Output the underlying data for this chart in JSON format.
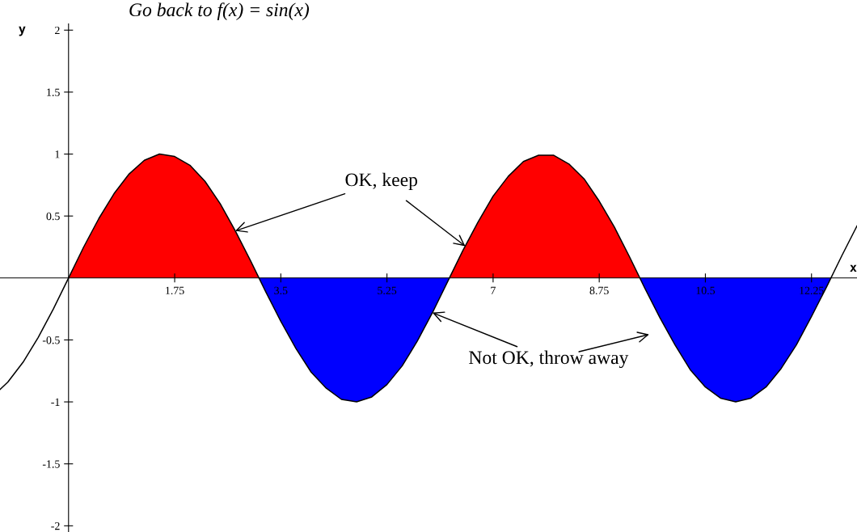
{
  "chart_data": {
    "type": "line",
    "title": "Go back to f(x) = sin(x)",
    "xlabel": "x",
    "ylabel": "y",
    "xlim": [
      -1.13,
      13.0
    ],
    "ylim": [
      -2.05,
      2.05
    ],
    "xticks": [
      1.75,
      3.5,
      5.25,
      7,
      8.75,
      10.5,
      12.25
    ],
    "yticks": [
      -2,
      -1.5,
      -1,
      -0.5,
      0.5,
      1,
      1.5,
      2
    ],
    "grid": false,
    "legend": false,
    "marker": "none",
    "line_style": "solid",
    "series": [
      {
        "type": "area",
        "color": "#ff0000",
        "x": [
          0,
          0.25,
          0.5,
          0.75,
          1.0,
          1.25,
          1.5,
          1.75,
          2.0,
          2.25,
          2.5,
          2.75,
          3.0,
          3.14
        ],
        "values": [
          0,
          0.25,
          0.48,
          0.68,
          0.84,
          0.95,
          1.0,
          0.98,
          0.91,
          0.78,
          0.6,
          0.38,
          0.14,
          0
        ]
      },
      {
        "type": "area",
        "color": "#0000ff",
        "x": [
          3.14,
          3.25,
          3.5,
          3.75,
          4.0,
          4.25,
          4.5,
          4.75,
          5.0,
          5.25,
          5.5,
          5.75,
          6.0,
          6.25,
          6.28
        ],
        "values": [
          0,
          -0.11,
          -0.35,
          -0.57,
          -0.76,
          -0.89,
          -0.98,
          -1.0,
          -0.96,
          -0.86,
          -0.71,
          -0.51,
          -0.28,
          -0.03,
          0
        ]
      },
      {
        "type": "area",
        "color": "#ff0000",
        "x": [
          6.28,
          6.5,
          6.75,
          7.0,
          7.25,
          7.5,
          7.75,
          8.0,
          8.25,
          8.5,
          8.75,
          9.0,
          9.25,
          9.42
        ],
        "values": [
          0,
          0.22,
          0.45,
          0.66,
          0.82,
          0.94,
          0.99,
          0.99,
          0.92,
          0.8,
          0.62,
          0.41,
          0.17,
          0
        ]
      },
      {
        "type": "area",
        "color": "#0000ff",
        "x": [
          9.42,
          9.5,
          9.75,
          10.0,
          10.25,
          10.5,
          10.75,
          11.0,
          11.25,
          11.5,
          11.75,
          12.0,
          12.25,
          12.5,
          12.57
        ],
        "values": [
          0,
          -0.08,
          -0.32,
          -0.54,
          -0.74,
          -0.88,
          -0.97,
          -1.0,
          -0.97,
          -0.88,
          -0.73,
          -0.54,
          -0.31,
          -0.07,
          0
        ]
      },
      {
        "color": "#000000",
        "x": [
          -1.13,
          -1.0,
          -0.75,
          -0.5,
          -0.25,
          0,
          0.25,
          0.5,
          0.75,
          1.0,
          1.25,
          1.5,
          1.75,
          2.0,
          2.25,
          2.5,
          2.75,
          3.0,
          3.25,
          3.5,
          3.75,
          4.0,
          4.25,
          4.5,
          4.75,
          5.0,
          5.25,
          5.5,
          5.75,
          6.0,
          6.25,
          6.5,
          6.75,
          7.0,
          7.25,
          7.5,
          7.75,
          8.0,
          8.25,
          8.5,
          8.75,
          9.0,
          9.25,
          9.5,
          9.75,
          10.0,
          10.25,
          10.5,
          10.75,
          11.0,
          11.25,
          11.5,
          11.75,
          12.0,
          12.25,
          12.5,
          12.75,
          13.0
        ],
        "values": [
          -0.9,
          -0.84,
          -0.68,
          -0.48,
          -0.25,
          0,
          0.25,
          0.48,
          0.68,
          0.84,
          0.95,
          1.0,
          0.98,
          0.91,
          0.78,
          0.6,
          0.38,
          0.14,
          -0.11,
          -0.35,
          -0.57,
          -0.76,
          -0.89,
          -0.98,
          -1.0,
          -0.96,
          -0.86,
          -0.71,
          -0.51,
          -0.28,
          -0.03,
          0.22,
          0.45,
          0.66,
          0.82,
          0.94,
          0.99,
          0.99,
          0.92,
          0.8,
          0.62,
          0.41,
          0.17,
          -0.08,
          -0.32,
          -0.54,
          -0.74,
          -0.88,
          -0.97,
          -1.0,
          -0.97,
          -0.88,
          -0.73,
          -0.54,
          -0.31,
          -0.07,
          0.18,
          0.42
        ]
      }
    ],
    "annotations": [
      {
        "text": "OK, keep",
        "x": 2.75,
        "y": 0.38
      },
      {
        "text": "Not OK, throw away",
        "x": 6.0,
        "y": -0.28
      }
    ]
  }
}
